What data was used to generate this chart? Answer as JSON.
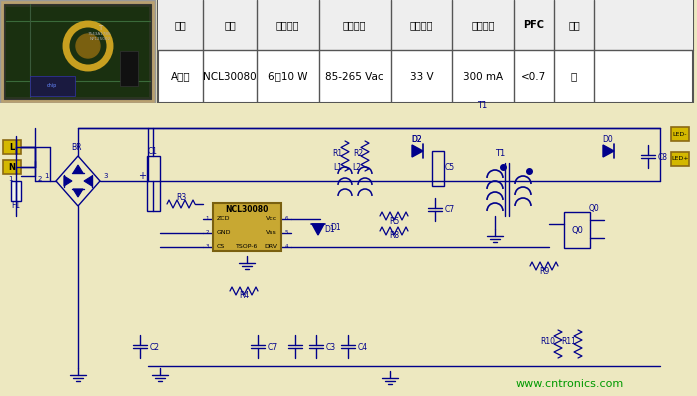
{
  "bg_color": "#ede8c0",
  "schematic_bg": "#ede8c0",
  "table_bg": "#ffffff",
  "table_border": "#555555",
  "circuit_color": "#00008B",
  "ic_fill": "#c8a832",
  "ic_border": "#7a6010",
  "connector_fill": "#d4b800",
  "connector_border": "#8B6914",
  "watermark": "www.cntronics.com",
  "watermark_color": "#009900",
  "headers": [
    "应用",
    "器件",
    "输出功率",
    "输入电压",
    "输出电压",
    "输出电流",
    "PFC",
    "调光"
  ],
  "row": [
    "A型灯",
    "NCL30080",
    "6～10 W",
    "85-265 Vac",
    "33 V",
    "300 mA",
    "<0.7",
    "无"
  ],
  "col_ratios": [
    0.085,
    0.1,
    0.115,
    0.135,
    0.115,
    0.115,
    0.075,
    0.075
  ],
  "figsize": [
    6.97,
    3.96
  ],
  "dpi": 100
}
